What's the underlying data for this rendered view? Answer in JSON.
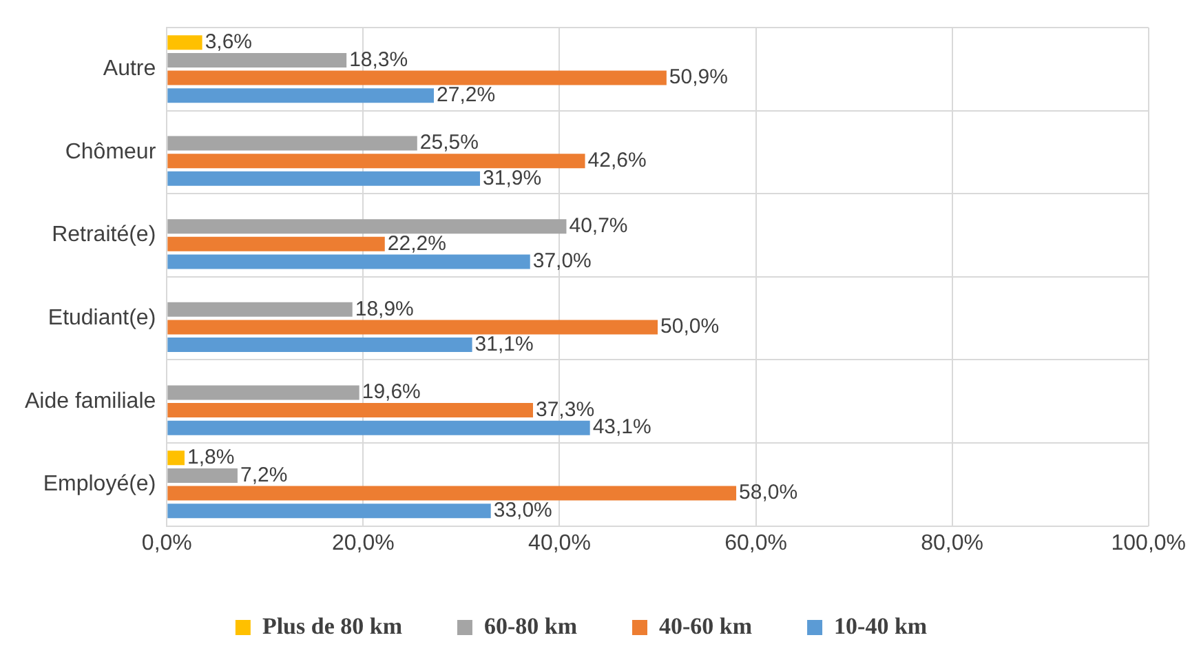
{
  "chart_data": {
    "type": "bar",
    "orientation": "horizontal",
    "categories": [
      "Autre",
      "Chômeur",
      "Retraité(e)",
      "Etudiant(e)",
      "Aide familiale",
      "Employé(e)"
    ],
    "series": [
      {
        "name": "Plus de 80 km",
        "color": "#ffc000",
        "values": [
          3.6,
          null,
          null,
          null,
          null,
          1.8
        ],
        "value_labels": [
          "3,6%",
          null,
          null,
          null,
          null,
          "1,8%"
        ]
      },
      {
        "name": "60-80 km",
        "color": "#a5a5a5",
        "values": [
          18.3,
          25.5,
          40.7,
          18.9,
          19.6,
          7.2
        ],
        "value_labels": [
          "18,3%",
          "25,5%",
          "40,7%",
          "18,9%",
          "19,6%",
          "7,2%"
        ]
      },
      {
        "name": "40-60 km",
        "color": "#ed7d31",
        "values": [
          50.9,
          42.6,
          22.2,
          50.0,
          37.3,
          58.0
        ],
        "value_labels": [
          "50,9%",
          "42,6%",
          "22,2%",
          "50,0%",
          "37,3%",
          "58,0%"
        ]
      },
      {
        "name": "10-40 km",
        "color": "#5b9bd5",
        "values": [
          27.2,
          31.9,
          37.0,
          31.1,
          43.1,
          33.0
        ],
        "value_labels": [
          "27,2%",
          "31,9%",
          "37,0%",
          "31,1%",
          "43,1%",
          "33,0%"
        ]
      }
    ],
    "xlim": [
      0,
      100
    ],
    "xticks": [
      {
        "value": 0,
        "label": "0,0%"
      },
      {
        "value": 20,
        "label": "20,0%"
      },
      {
        "value": 40,
        "label": "40,0%"
      },
      {
        "value": 60,
        "label": "60,0%"
      },
      {
        "value": 80,
        "label": "80,0%"
      },
      {
        "value": 100,
        "label": "100,0%"
      }
    ],
    "grid": true,
    "legend": "bottom"
  }
}
